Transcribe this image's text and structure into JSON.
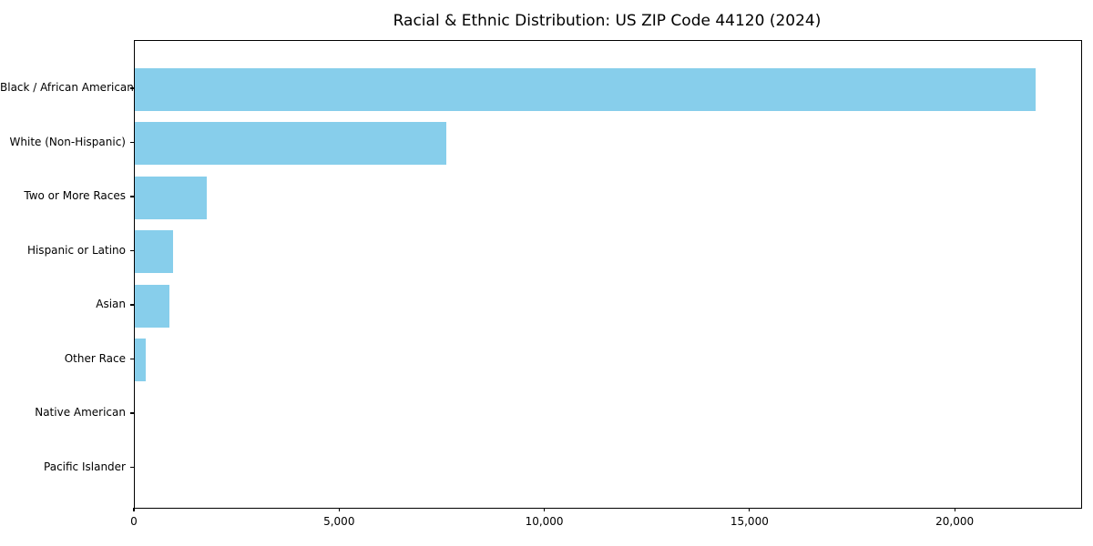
{
  "title": "Racial & Ethnic Distribution: US ZIP Code 44120 (2024)",
  "chart_data": {
    "type": "bar",
    "orientation": "horizontal",
    "title": "Racial & Ethnic Distribution: US ZIP Code 44120 (2024)",
    "xlabel": "",
    "ylabel": "",
    "categories": [
      "Black / African American",
      "White (Non-Hispanic)",
      "Two or More Races",
      "Hispanic or Latino",
      "Asian",
      "Other Race",
      "Native American",
      "Pacific Islander"
    ],
    "values": [
      21950,
      7590,
      1750,
      930,
      840,
      260,
      0,
      0
    ],
    "xlim": [
      0,
      23060
    ],
    "xticks": [
      0,
      5000,
      10000,
      15000,
      20000
    ],
    "xtick_labels": [
      "0",
      "5,000",
      "10,000",
      "15,000",
      "20,000"
    ],
    "bar_color": "#87CEEB",
    "spine_color": "#000000",
    "grid": false,
    "legend": false
  }
}
